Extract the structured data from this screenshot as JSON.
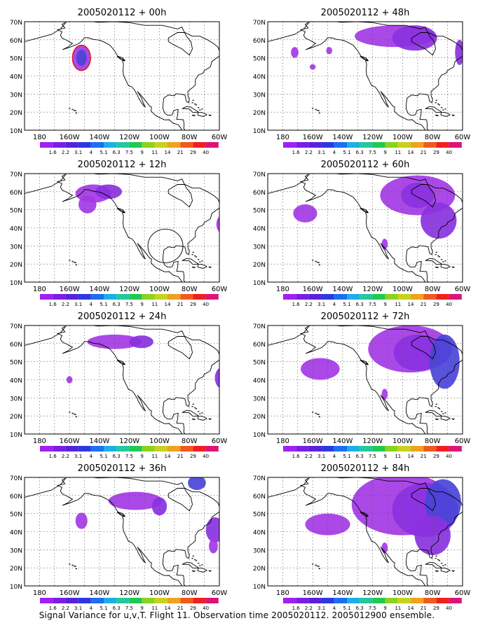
{
  "caption": "Signal Variance for u,v,T. Flight 11. Observation time 2005020112. 2005012900 ensemble.",
  "lat_labels": [
    "70N",
    "60N",
    "50N",
    "40N",
    "30N",
    "20N",
    "10N"
  ],
  "lon_labels": [
    "180",
    "160W",
    "140W",
    "120W",
    "100W",
    "80W",
    "60W"
  ],
  "colorbar": {
    "labels": [
      "1.6",
      "2.2",
      "3.1",
      "4",
      "5.1",
      "6.3",
      "7.5",
      "9",
      "11",
      "14",
      "21",
      "29",
      "40"
    ],
    "colors": [
      "#a020f0",
      "#7a1ee6",
      "#5a22d8",
      "#2a3ae0",
      "#1e6ef0",
      "#1eaee6",
      "#22c8a0",
      "#22c850",
      "#8cd21e",
      "#c8d21e",
      "#f0a21e",
      "#f05a1e",
      "#f0201e",
      "#dc1478"
    ]
  },
  "panels": [
    {
      "title": "2005020112 + 00h"
    },
    {
      "title": "2005020112 + 12h"
    },
    {
      "title": "2005020112 + 24h"
    },
    {
      "title": "2005020112 + 36h"
    },
    {
      "title": "2005020112 + 48h"
    },
    {
      "title": "2005020112 + 60h"
    },
    {
      "title": "2005020112 + 72h"
    },
    {
      "title": "2005020112 + 84h"
    }
  ]
}
